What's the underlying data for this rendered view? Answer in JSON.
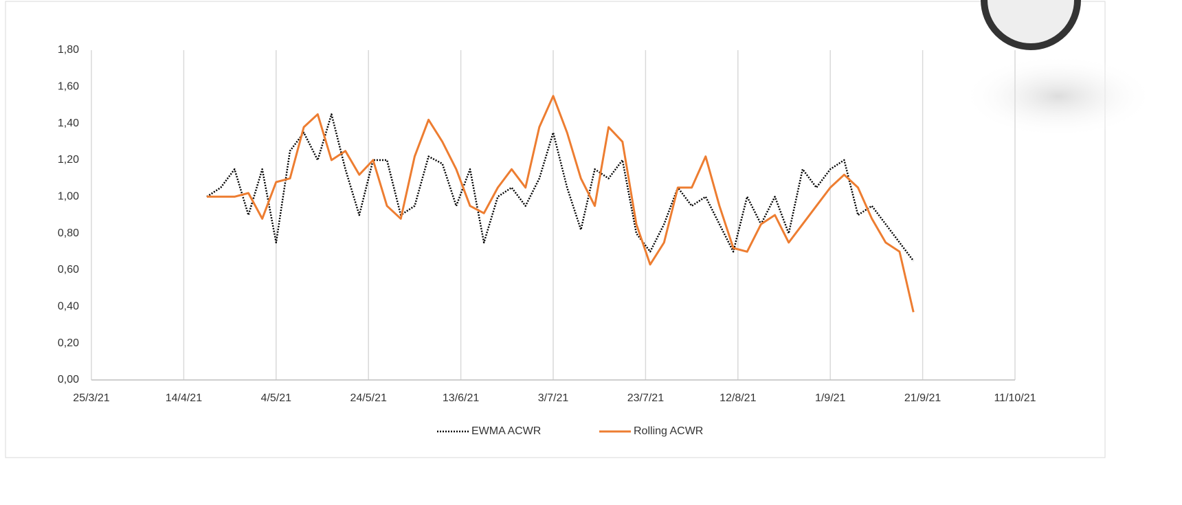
{
  "chart_data": {
    "type": "line",
    "x": [
      "2021-04-19",
      "2021-04-22",
      "2021-04-25",
      "2021-04-28",
      "2021-05-01",
      "2021-05-04",
      "2021-05-07",
      "2021-05-10",
      "2021-05-13",
      "2021-05-16",
      "2021-05-19",
      "2021-05-22",
      "2021-05-25",
      "2021-05-28",
      "2021-05-31",
      "2021-06-03",
      "2021-06-06",
      "2021-06-09",
      "2021-06-12",
      "2021-06-15",
      "2021-06-18",
      "2021-06-21",
      "2021-06-24",
      "2021-06-27",
      "2021-06-30",
      "2021-07-03",
      "2021-07-06",
      "2021-07-09",
      "2021-07-12",
      "2021-07-15",
      "2021-07-18",
      "2021-07-21",
      "2021-07-24",
      "2021-07-27",
      "2021-07-30",
      "2021-08-02",
      "2021-08-05",
      "2021-08-08",
      "2021-08-11",
      "2021-08-14",
      "2021-08-17",
      "2021-08-20",
      "2021-08-23",
      "2021-08-26",
      "2021-08-29",
      "2021-09-01",
      "2021-09-04",
      "2021-09-07",
      "2021-09-10",
      "2021-09-13",
      "2021-09-16",
      "2021-09-19"
    ],
    "series": [
      {
        "name": "EWMA ACWR",
        "color": "#000000",
        "style": "dotted",
        "values": [
          1.0,
          1.05,
          1.15,
          0.9,
          1.15,
          0.75,
          1.25,
          1.35,
          1.2,
          1.45,
          1.15,
          0.9,
          1.2,
          1.2,
          0.9,
          0.95,
          1.22,
          1.18,
          0.95,
          1.15,
          0.75,
          1.0,
          1.05,
          0.95,
          1.1,
          1.35,
          1.05,
          0.82,
          1.15,
          1.1,
          1.2,
          0.8,
          0.7,
          0.85,
          1.05,
          0.95,
          1.0,
          0.85,
          0.7,
          1.0,
          0.85,
          1.0,
          0.8,
          1.15,
          1.05,
          1.15,
          1.2,
          0.9,
          0.95,
          0.85,
          0.75,
          0.65
        ]
      },
      {
        "name": "Rolling ACWR",
        "color": "#ed7d31",
        "style": "solid",
        "values": [
          1.0,
          1.0,
          1.0,
          1.02,
          0.88,
          1.08,
          1.1,
          1.38,
          1.45,
          1.2,
          1.25,
          1.12,
          1.2,
          0.95,
          0.88,
          1.22,
          1.42,
          1.3,
          1.15,
          0.95,
          0.91,
          1.05,
          1.15,
          1.05,
          1.38,
          1.55,
          1.35,
          1.1,
          0.95,
          1.38,
          1.3,
          0.85,
          0.63,
          0.75,
          1.05,
          1.05,
          1.22,
          0.95,
          0.72,
          0.7,
          0.85,
          0.9,
          0.75,
          0.85,
          0.95,
          1.05,
          1.12,
          1.05,
          0.88,
          0.75,
          0.7,
          0.37
        ]
      }
    ],
    "xlim": [
      "2021-03-25",
      "2021-10-11"
    ],
    "xticks": [
      {
        "value": "2021-03-25",
        "label": "25/3/21"
      },
      {
        "value": "2021-04-14",
        "label": "14/4/21"
      },
      {
        "value": "2021-05-04",
        "label": "4/5/21"
      },
      {
        "value": "2021-05-24",
        "label": "24/5/21"
      },
      {
        "value": "2021-06-13",
        "label": "13/6/21"
      },
      {
        "value": "2021-07-03",
        "label": "3/7/21"
      },
      {
        "value": "2021-07-23",
        "label": "23/7/21"
      },
      {
        "value": "2021-08-12",
        "label": "12/8/21"
      },
      {
        "value": "2021-09-01",
        "label": "1/9/21"
      },
      {
        "value": "2021-09-21",
        "label": "21/9/21"
      },
      {
        "value": "2021-10-11",
        "label": "11/10/21"
      }
    ],
    "ylim": [
      0,
      1.8
    ],
    "yticks": [
      {
        "value": 0,
        "label": "0,00"
      },
      {
        "value": 0.2,
        "label": "0,20"
      },
      {
        "value": 0.4,
        "label": "0,40"
      },
      {
        "value": 0.6,
        "label": "0,60"
      },
      {
        "value": 0.8,
        "label": "0,80"
      },
      {
        "value": 1.0,
        "label": "1,00"
      },
      {
        "value": 1.2,
        "label": "1,20"
      },
      {
        "value": 1.4,
        "label": "1,40"
      },
      {
        "value": 1.6,
        "label": "1,60"
      },
      {
        "value": 1.8,
        "label": "1,80"
      }
    ],
    "grid": true,
    "legend": "bottom"
  }
}
